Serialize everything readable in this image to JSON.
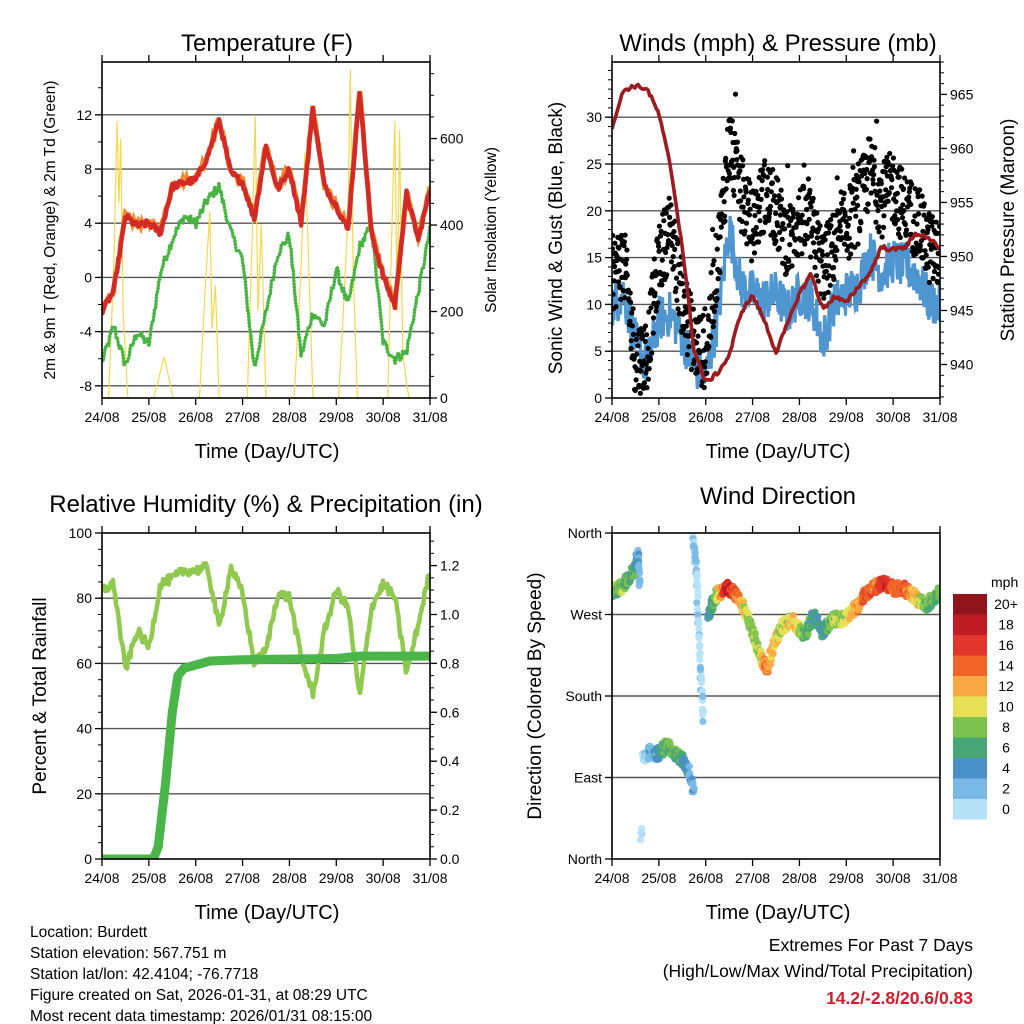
{
  "chart_data": [
    {
      "type": "line",
      "title": "Temperature (F)",
      "xlabel": "Time (Day/UTC)",
      "ylabel": "2m & 9m T (Red, Orange) & 2m Td (Green)",
      "y2label": "Solar Insolation (Yellow)",
      "xticks": [
        "24/08",
        "25/08",
        "26/08",
        "27/08",
        "28/08",
        "29/08",
        "30/08",
        "31/08"
      ],
      "xlim": [
        0,
        7
      ],
      "ylim": [
        -8.9,
        15.9
      ],
      "y2lim": [
        0,
        777
      ],
      "yticks": [
        {
          "v": -8,
          "label": "-8"
        },
        {
          "v": -4,
          "label": "-4"
        },
        {
          "v": 0,
          "label": "0"
        },
        {
          "v": 4,
          "label": "4"
        },
        {
          "v": 8,
          "label": "8"
        },
        {
          "v": 12,
          "label": "12"
        }
      ],
      "y2ticks": [
        {
          "v": 0,
          "label": "0"
        },
        {
          "v": 200,
          "label": "200"
        },
        {
          "v": 400,
          "label": "400"
        },
        {
          "v": 600,
          "label": "600"
        }
      ],
      "x_step_days": 0.25,
      "series": [
        {
          "name": "2m T",
          "color": "#d42a27",
          "values": [
            -2.5,
            -1,
            4.5,
            3.8,
            4,
            3.3,
            6.7,
            7,
            7.2,
            8.9,
            11.6,
            7.7,
            7,
            4.3,
            9.7,
            6.5,
            8,
            4,
            12.4,
            6.7,
            5.3,
            3.5,
            13.8,
            3.3,
            0.1,
            -2.1,
            6.2,
            2.8,
            6.5
          ]
        },
        {
          "name": "9m T",
          "color": "#f08a2c",
          "values": [
            -2.4,
            -0.9,
            4.6,
            3.9,
            4.1,
            3.4,
            6.8,
            7.1,
            7.3,
            9,
            11.7,
            7.8,
            7.1,
            4.4,
            9.8,
            6.6,
            8.1,
            4.1,
            12.5,
            6.8,
            5.4,
            3.6,
            13.9,
            3.4,
            0.2,
            -2,
            6.3,
            2.9,
            6.6
          ]
        },
        {
          "name": "2m Td",
          "color": "#47b441",
          "values": [
            -6.3,
            -3.6,
            -6.5,
            -4,
            -5,
            0.4,
            2.8,
            4.5,
            4,
            5.7,
            6.7,
            3.3,
            1.3,
            -6.7,
            -2.6,
            1.8,
            3.1,
            -5.8,
            -2.6,
            -3.6,
            0.6,
            -2.1,
            2.3,
            3.8,
            -4.8,
            -6,
            -5.5,
            -1.1,
            3.5
          ]
        },
        {
          "name": "Solar Insolation",
          "axis": "y2",
          "color": "#f7d84a",
          "points": [
            [
              0,
              0
            ],
            [
              0.14,
              0
            ],
            [
              0.25,
              300
            ],
            [
              0.32,
              640
            ],
            [
              0.36,
              450
            ],
            [
              0.4,
              600
            ],
            [
              0.45,
              200
            ],
            [
              0.55,
              0
            ],
            [
              1.1,
              0
            ],
            [
              1.33,
              95
            ],
            [
              1.52,
              0
            ],
            [
              2.08,
              0
            ],
            [
              2.2,
              250
            ],
            [
              2.3,
              430
            ],
            [
              2.35,
              160
            ],
            [
              2.42,
              260
            ],
            [
              2.5,
              0
            ],
            [
              3.1,
              0
            ],
            [
              3.2,
              350
            ],
            [
              3.27,
              654
            ],
            [
              3.33,
              200
            ],
            [
              3.4,
              400
            ],
            [
              3.5,
              0
            ],
            [
              4.1,
              0
            ],
            [
              4.25,
              300
            ],
            [
              4.33,
              567
            ],
            [
              4.4,
              350
            ],
            [
              4.5,
              0
            ],
            [
              5.05,
              0
            ],
            [
              5.15,
              200
            ],
            [
              5.25,
              420
            ],
            [
              5.3,
              760
            ],
            [
              5.36,
              300
            ],
            [
              5.45,
              0
            ],
            [
              6.1,
              0
            ],
            [
              6.2,
              450
            ],
            [
              6.25,
              640
            ],
            [
              6.3,
              200
            ],
            [
              6.35,
              620
            ],
            [
              6.42,
              100
            ],
            [
              6.55,
              0
            ],
            [
              7,
              0
            ]
          ]
        }
      ]
    },
    {
      "type": "line",
      "title": "Winds (mph) & Pressure (mb)",
      "xlabel": "Time (Day/UTC)",
      "ylabel": "Sonic Wind & Gust (Blue, Black)",
      "y2label": "Station Pressure (Maroon)",
      "xticks": [
        "24/08",
        "25/08",
        "26/08",
        "27/08",
        "28/08",
        "29/08",
        "30/08",
        "31/08"
      ],
      "xlim": [
        0,
        7
      ],
      "ylim": [
        0,
        35.9
      ],
      "y2lim": [
        936.9,
        968
      ],
      "yticks": [
        {
          "v": 0,
          "label": "0"
        },
        {
          "v": 5,
          "label": "5"
        },
        {
          "v": 10,
          "label": "10"
        },
        {
          "v": 15,
          "label": "15"
        },
        {
          "v": 20,
          "label": "20"
        },
        {
          "v": 25,
          "label": "25"
        },
        {
          "v": 30,
          "label": "30"
        }
      ],
      "y2ticks": [
        {
          "v": 940,
          "label": "940"
        },
        {
          "v": 945,
          "label": "945"
        },
        {
          "v": 950,
          "label": "950"
        },
        {
          "v": 955,
          "label": "955"
        },
        {
          "v": 960,
          "label": "960"
        },
        {
          "v": 965,
          "label": "965"
        }
      ],
      "x_step_days": 0.25,
      "series": [
        {
          "name": "Sonic Wind",
          "color": "#4f95d0",
          "values": [
            10,
            11.2,
            5.9,
            3.4,
            8.4,
            9,
            6.6,
            3.4,
            2.3,
            8.4,
            18.3,
            11.9,
            11.2,
            10.5,
            11.2,
            9.1,
            11.2,
            10.5,
            6.2,
            10.1,
            11.2,
            11.9,
            15.5,
            13.3,
            14.7,
            14,
            13.3,
            10.5,
            9.8
          ]
        },
        {
          "name": "Gust",
          "color": "#000000",
          "values": [
            13,
            14.8,
            4.1,
            4.8,
            14.8,
            18.3,
            10.5,
            5.9,
            4.8,
            14.8,
            27.2,
            21.8,
            18.3,
            21.8,
            20,
            16.5,
            19,
            18.3,
            14,
            16.2,
            18.3,
            20.4,
            24.3,
            21.1,
            22.6,
            20,
            19,
            16.2,
            14.8
          ]
        },
        {
          "name": "Station Pressure",
          "axis": "y2",
          "color": "#9b1b1e",
          "values": [
            962,
            965.4,
            965.8,
            965.5,
            963.2,
            958.3,
            950.9,
            941.4,
            938.3,
            939.2,
            940.8,
            944.8,
            946.4,
            944.1,
            941.1,
            943.8,
            946.6,
            948.4,
            945.1,
            946.3,
            945.7,
            947.2,
            948.4,
            950.9,
            950.6,
            950.9,
            952.1,
            951.8,
            950.6
          ]
        }
      ]
    },
    {
      "type": "line",
      "title": "Relative Humidity (%) & Precipitation (in)",
      "xlabel": "Time (Day/UTC)",
      "ylabel": "Percent & Total Rainfall",
      "xticks": [
        "24/08",
        "25/08",
        "26/08",
        "27/08",
        "28/08",
        "29/08",
        "30/08",
        "31/08"
      ],
      "xlim": [
        0,
        7
      ],
      "ylim": [
        0,
        100
      ],
      "y2lim": [
        0,
        1.3333
      ],
      "yticks": [
        {
          "v": 0,
          "label": "0"
        },
        {
          "v": 20,
          "label": "20"
        },
        {
          "v": 40,
          "label": "40"
        },
        {
          "v": 60,
          "label": "60"
        },
        {
          "v": 80,
          "label": "80"
        },
        {
          "v": 100,
          "label": "100"
        }
      ],
      "y2ticks": [
        {
          "v": 0,
          "label": "0.0"
        },
        {
          "v": 0.2,
          "label": "0.2"
        },
        {
          "v": 0.4,
          "label": "0.4"
        },
        {
          "v": 0.6,
          "label": "0.6"
        },
        {
          "v": 0.8,
          "label": "0.8"
        },
        {
          "v": 1.0,
          "label": "1.0"
        },
        {
          "v": 1.2,
          "label": "1.2"
        }
      ],
      "x_step_days": 0.25,
      "series": [
        {
          "name": "Relative Humidity",
          "color": "#8fca4f",
          "values": [
            82.4,
            84.4,
            57.8,
            70,
            65,
            84.4,
            86,
            88.5,
            88.5,
            89.5,
            71,
            89.5,
            81.3,
            60,
            64,
            81.3,
            80.3,
            62,
            50.7,
            70,
            82.4,
            77.2,
            49.6,
            77.2,
            84.4,
            80.3,
            56.8,
            72,
            88.5
          ]
        },
        {
          "name": "Total Rainfall",
          "axis": "y2",
          "color": "#4ab549",
          "points": [
            [
              0,
              0
            ],
            [
              1.1,
              0
            ],
            [
              1.2,
              0.05
            ],
            [
              1.35,
              0.3
            ],
            [
              1.5,
              0.6
            ],
            [
              1.62,
              0.75
            ],
            [
              1.75,
              0.78
            ],
            [
              2.3,
              0.81
            ],
            [
              3,
              0.815
            ],
            [
              5,
              0.82
            ],
            [
              5.5,
              0.83
            ],
            [
              7,
              0.83
            ]
          ]
        }
      ]
    },
    {
      "type": "scatter",
      "title": "Wind Direction",
      "xlabel": "Time (Day/UTC)",
      "ylabel": "Direction (Colored By Speed)",
      "xticks": [
        "24/08",
        "25/08",
        "26/08",
        "27/08",
        "28/08",
        "29/08",
        "30/08",
        "31/08"
      ],
      "xlim": [
        0,
        7
      ],
      "ylim": [
        0,
        360
      ],
      "yticks": [
        {
          "v": 0,
          "label": "North"
        },
        {
          "v": 90,
          "label": "East"
        },
        {
          "v": 180,
          "label": "South"
        },
        {
          "v": 270,
          "label": "West"
        },
        {
          "v": 360,
          "label": "North"
        }
      ],
      "legend": {
        "title": "mph",
        "placement": "right",
        "bins": [
          {
            "label": "0",
            "color": "#b6e2f7"
          },
          {
            "label": "2",
            "color": "#7ab9e5"
          },
          {
            "label": "4",
            "color": "#4a8fc7"
          },
          {
            "label": "6",
            "color": "#48a575"
          },
          {
            "label": "8",
            "color": "#7cc24f"
          },
          {
            "label": "10",
            "color": "#e6e056"
          },
          {
            "label": "12",
            "color": "#f8a843"
          },
          {
            "label": "14",
            "color": "#f06428"
          },
          {
            "label": "16",
            "color": "#e1352b"
          },
          {
            "label": "18",
            "color": "#bf1c24"
          },
          {
            "label": "20+",
            "color": "#8f141b"
          }
        ]
      },
      "segments": [
        [
          [
            0,
            296,
            9
          ],
          [
            0.2,
            300,
            9
          ],
          [
            0.35,
            310,
            8
          ],
          [
            0.5,
            320,
            7
          ],
          [
            0.55,
            340,
            4
          ],
          [
            0.6,
            300,
            3
          ]
        ],
        [
          [
            0.62,
            24,
            1
          ],
          [
            0.63,
            40,
            1
          ]
        ],
        [
          [
            0.65,
            110,
            2
          ],
          [
            0.8,
            118,
            3
          ],
          [
            0.95,
            115,
            5
          ],
          [
            1.15,
            125,
            8
          ],
          [
            1.3,
            120,
            8
          ],
          [
            1.5,
            110,
            7
          ],
          [
            1.65,
            95,
            4
          ],
          [
            1.75,
            75,
            4
          ]
        ],
        [
          [
            1.72,
            355,
            2
          ],
          [
            1.8,
            320,
            2
          ],
          [
            1.85,
            250,
            1
          ],
          [
            1.9,
            200,
            2
          ],
          [
            1.95,
            150,
            2
          ]
        ],
        [
          [
            2.05,
            270,
            5
          ],
          [
            2.2,
            290,
            8
          ],
          [
            2.45,
            300,
            19
          ],
          [
            2.7,
            290,
            14
          ],
          [
            2.95,
            260,
            9
          ],
          [
            3.15,
            225,
            10
          ],
          [
            3.3,
            210,
            15
          ],
          [
            3.45,
            235,
            12
          ],
          [
            3.6,
            255,
            10
          ],
          [
            3.85,
            265,
            12
          ],
          [
            4.1,
            245,
            9
          ],
          [
            4.3,
            270,
            6
          ],
          [
            4.5,
            250,
            6
          ],
          [
            4.7,
            265,
            9
          ],
          [
            5.0,
            265,
            11
          ],
          [
            5.25,
            280,
            13
          ],
          [
            5.45,
            295,
            16
          ],
          [
            5.6,
            300,
            14
          ],
          [
            5.8,
            305,
            18
          ],
          [
            6.0,
            298,
            15
          ],
          [
            6.2,
            300,
            16
          ],
          [
            6.45,
            290,
            12
          ],
          [
            6.7,
            280,
            9
          ],
          [
            7.0,
            295,
            8
          ]
        ]
      ]
    }
  ],
  "info": {
    "location": "Location: Burdett",
    "elevation": "Station elevation: 567.751 m",
    "latlon": "Station lat/lon: 42.4104; -76.7718",
    "created": "Figure created on Sat, 2026-01-31, at 08:29 UTC",
    "recent": "Most recent data timestamp: 2026/01/31 08:15:00"
  },
  "extremes": {
    "heading": "Extremes For Past 7 Days",
    "subheading": "(High/Low/Max Wind/Total Precipitation)",
    "values": "14.2/-2.8/20.6/0.83",
    "color": "#c8202e"
  }
}
